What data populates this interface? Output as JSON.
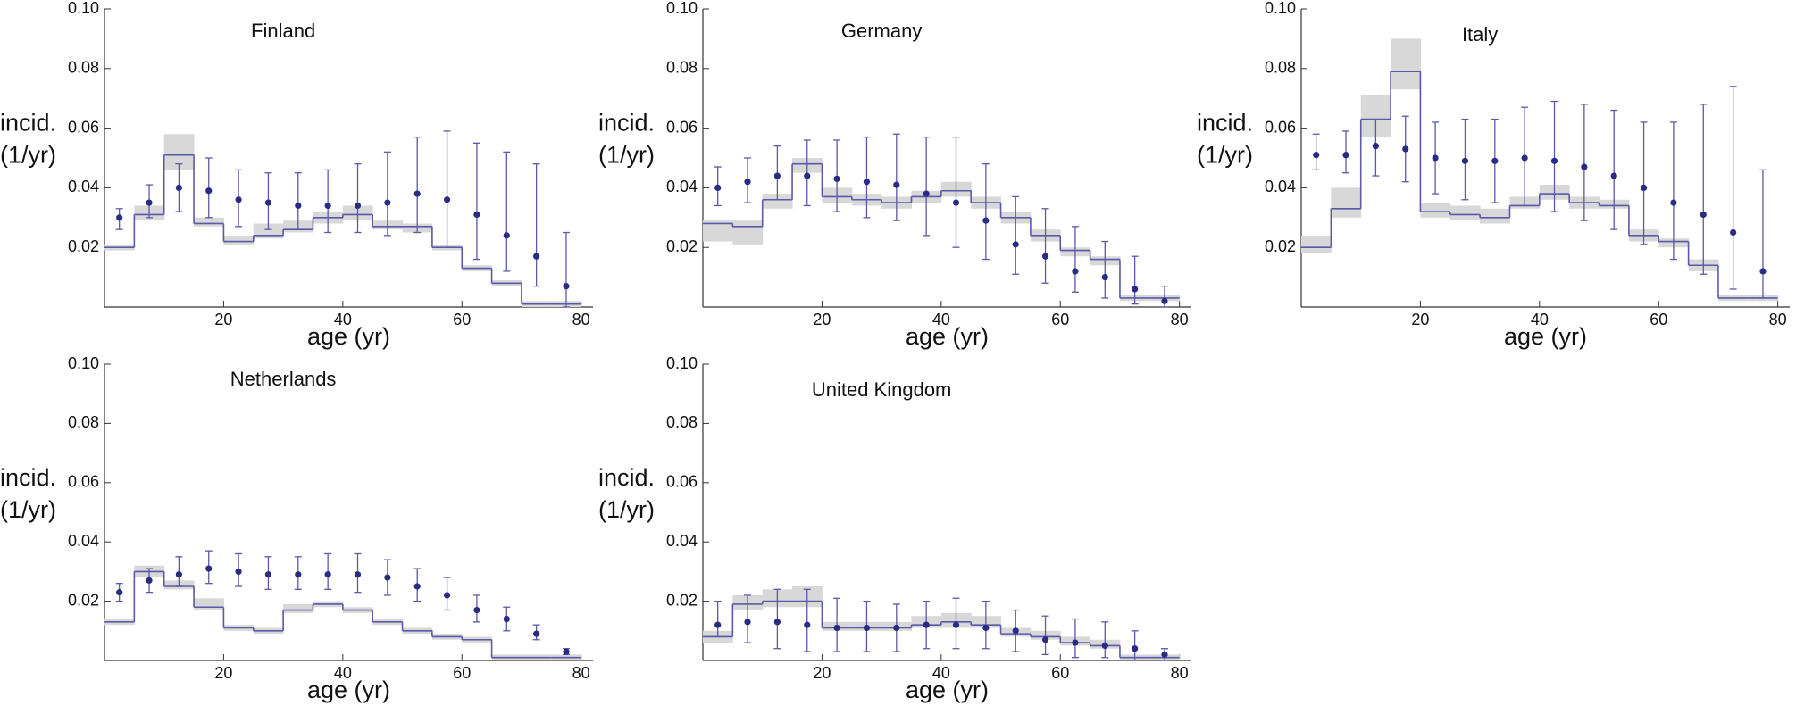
{
  "chart_data": [
    {
      "type": "errorbar",
      "title": "Finland",
      "xlabel": "age (yr)",
      "ylabel": [
        "incid.",
        "(1/yr)"
      ],
      "x": [
        2.5,
        7.5,
        12.5,
        17.5,
        22.5,
        27.5,
        32.5,
        37.5,
        42.5,
        47.5,
        52.5,
        57.5,
        62.5,
        67.5,
        72.5,
        77.5
      ],
      "values": [
        0.03,
        0.035,
        0.04,
        0.039,
        0.036,
        0.035,
        0.034,
        0.034,
        0.034,
        0.035,
        0.038,
        0.036,
        0.031,
        0.024,
        0.017,
        0.007
      ],
      "error_low": [
        0.026,
        0.03,
        0.032,
        0.03,
        0.027,
        0.026,
        0.026,
        0.025,
        0.025,
        0.024,
        0.025,
        0.02,
        0.016,
        0.012,
        0.007,
        0.0
      ],
      "error_high": [
        0.033,
        0.041,
        0.048,
        0.05,
        0.046,
        0.045,
        0.045,
        0.046,
        0.048,
        0.052,
        0.057,
        0.059,
        0.055,
        0.052,
        0.048,
        0.025
      ],
      "bins": [
        0,
        5,
        10,
        15,
        20,
        25,
        30,
        35,
        40,
        45,
        50,
        55,
        60,
        65,
        70,
        75,
        80
      ],
      "model": [
        0.02,
        0.031,
        0.051,
        0.028,
        0.022,
        0.024,
        0.026,
        0.03,
        0.031,
        0.027,
        0.027,
        0.02,
        0.013,
        0.008,
        0.001,
        0.001
      ],
      "model_low": [
        0.019,
        0.029,
        0.046,
        0.027,
        0.021,
        0.023,
        0.025,
        0.028,
        0.029,
        0.026,
        0.025,
        0.019,
        0.012,
        0.007,
        0.0,
        0.0
      ],
      "model_high": [
        0.021,
        0.034,
        0.058,
        0.03,
        0.024,
        0.028,
        0.029,
        0.032,
        0.034,
        0.029,
        0.028,
        0.021,
        0.014,
        0.009,
        0.002,
        0.002
      ],
      "xlim": [
        0,
        82
      ],
      "xticks": [
        20,
        40,
        60,
        80
      ],
      "ylim": [
        0,
        0.1
      ],
      "yticks": [
        0.02,
        0.04,
        0.06,
        0.08,
        {
          "value": 0.1,
          "label": "0.10"
        }
      ],
      "color": "#2b2b85",
      "line_color": "#5a5aa8",
      "band_color": "#d8d8d8"
    },
    {
      "type": "errorbar",
      "title": "Germany",
      "xlabel": "age (yr)",
      "ylabel": [
        "incid.",
        "(1/yr)"
      ],
      "x": [
        2.5,
        7.5,
        12.5,
        17.5,
        22.5,
        27.5,
        32.5,
        37.5,
        42.5,
        47.5,
        52.5,
        57.5,
        62.5,
        67.5,
        72.5,
        77.5
      ],
      "values": [
        0.04,
        0.042,
        0.044,
        0.044,
        0.043,
        0.042,
        0.041,
        0.038,
        0.035,
        0.029,
        0.021,
        0.017,
        0.012,
        0.01,
        0.006,
        0.002
      ],
      "error_low": [
        0.034,
        0.035,
        0.036,
        0.034,
        0.032,
        0.03,
        0.029,
        0.024,
        0.02,
        0.016,
        0.011,
        0.008,
        0.005,
        0.003,
        0.001,
        0.0
      ],
      "error_high": [
        0.047,
        0.05,
        0.054,
        0.056,
        0.056,
        0.057,
        0.058,
        0.057,
        0.057,
        0.048,
        0.037,
        0.033,
        0.027,
        0.022,
        0.017,
        0.007
      ],
      "bins": [
        0,
        5,
        10,
        15,
        20,
        25,
        30,
        35,
        40,
        45,
        50,
        55,
        60,
        65,
        70,
        75,
        80
      ],
      "model": [
        0.028,
        0.027,
        0.036,
        0.048,
        0.037,
        0.036,
        0.035,
        0.037,
        0.039,
        0.035,
        0.03,
        0.024,
        0.019,
        0.016,
        0.003,
        0.003
      ],
      "model_low": [
        0.022,
        0.021,
        0.033,
        0.045,
        0.035,
        0.034,
        0.033,
        0.035,
        0.037,
        0.033,
        0.028,
        0.022,
        0.017,
        0.014,
        0.002,
        0.002
      ],
      "model_high": [
        0.029,
        0.029,
        0.038,
        0.05,
        0.04,
        0.038,
        0.037,
        0.039,
        0.042,
        0.037,
        0.032,
        0.026,
        0.02,
        0.017,
        0.004,
        0.004
      ],
      "xlim": [
        0,
        82
      ],
      "xticks": [
        20,
        40,
        60,
        80
      ],
      "ylim": [
        0,
        0.1
      ],
      "yticks": [
        0.02,
        0.04,
        0.06,
        0.08,
        {
          "value": 0.1,
          "label": "0.10"
        }
      ],
      "color": "#2b2b85",
      "line_color": "#5a5aa8",
      "band_color": "#d8d8d8"
    },
    {
      "type": "errorbar",
      "title": "Italy",
      "xlabel": "age (yr)",
      "ylabel": [
        "incid.",
        "(1/yr)"
      ],
      "x": [
        2.5,
        7.5,
        12.5,
        17.5,
        22.5,
        27.5,
        32.5,
        37.5,
        42.5,
        47.5,
        52.5,
        57.5,
        62.5,
        67.5,
        72.5,
        77.5
      ],
      "values": [
        0.051,
        0.051,
        0.054,
        0.053,
        0.05,
        0.049,
        0.049,
        0.05,
        0.049,
        0.047,
        0.044,
        0.04,
        0.035,
        0.031,
        0.025,
        0.012
      ],
      "error_low": [
        0.046,
        0.045,
        0.044,
        0.042,
        0.038,
        0.036,
        0.035,
        0.034,
        0.032,
        0.029,
        0.026,
        0.021,
        0.016,
        0.011,
        0.006,
        0.003
      ],
      "error_high": [
        0.058,
        0.059,
        0.063,
        0.064,
        0.062,
        0.063,
        0.063,
        0.067,
        0.069,
        0.068,
        0.066,
        0.062,
        0.062,
        0.068,
        0.074,
        0.046
      ],
      "bins": [
        0,
        5,
        10,
        15,
        20,
        25,
        30,
        35,
        40,
        45,
        50,
        55,
        60,
        65,
        70,
        75,
        80
      ],
      "model": [
        0.02,
        0.033,
        0.063,
        0.079,
        0.032,
        0.031,
        0.03,
        0.034,
        0.038,
        0.035,
        0.034,
        0.024,
        0.022,
        0.014,
        0.003,
        0.003
      ],
      "model_low": [
        0.018,
        0.03,
        0.057,
        0.073,
        0.03,
        0.029,
        0.028,
        0.033,
        0.036,
        0.033,
        0.033,
        0.022,
        0.02,
        0.012,
        0.002,
        0.002
      ],
      "model_high": [
        0.024,
        0.04,
        0.071,
        0.09,
        0.035,
        0.034,
        0.033,
        0.037,
        0.041,
        0.037,
        0.036,
        0.026,
        0.023,
        0.016,
        0.004,
        0.004
      ],
      "xlim": [
        0,
        82
      ],
      "xticks": [
        20,
        40,
        60,
        80
      ],
      "ylim": [
        0,
        0.1
      ],
      "yticks": [
        0.02,
        0.04,
        0.06,
        0.08,
        {
          "value": 0.1,
          "label": "0.10"
        }
      ],
      "color": "#2b2b85",
      "line_color": "#5a5aa8",
      "band_color": "#d8d8d8"
    },
    {
      "type": "errorbar",
      "title": "Netherlands",
      "xlabel": "age (yr)",
      "ylabel": [
        "incid.",
        "(1/yr)"
      ],
      "x": [
        2.5,
        7.5,
        12.5,
        17.5,
        22.5,
        27.5,
        32.5,
        37.5,
        42.5,
        47.5,
        52.5,
        57.5,
        62.5,
        67.5,
        72.5,
        77.5
      ],
      "values": [
        0.023,
        0.027,
        0.029,
        0.031,
        0.03,
        0.029,
        0.029,
        0.029,
        0.029,
        0.028,
        0.025,
        0.022,
        0.017,
        0.014,
        0.009,
        0.003
      ],
      "error_low": [
        0.02,
        0.023,
        0.025,
        0.026,
        0.025,
        0.024,
        0.024,
        0.024,
        0.023,
        0.022,
        0.02,
        0.017,
        0.013,
        0.01,
        0.007,
        0.002
      ],
      "error_high": [
        0.026,
        0.031,
        0.035,
        0.037,
        0.036,
        0.035,
        0.035,
        0.036,
        0.036,
        0.034,
        0.031,
        0.028,
        0.022,
        0.018,
        0.012,
        0.004
      ],
      "bins": [
        0,
        5,
        10,
        15,
        20,
        25,
        30,
        35,
        40,
        45,
        50,
        55,
        60,
        65,
        70,
        75,
        80
      ],
      "model": [
        0.013,
        0.03,
        0.025,
        0.018,
        0.011,
        0.01,
        0.017,
        0.019,
        0.017,
        0.013,
        0.01,
        0.008,
        0.007,
        0.001,
        0.001,
        0.001
      ],
      "model_low": [
        0.012,
        0.028,
        0.024,
        0.017,
        0.01,
        0.009,
        0.016,
        0.018,
        0.016,
        0.012,
        0.009,
        0.007,
        0.006,
        0.0,
        0.0,
        0.0
      ],
      "model_high": [
        0.014,
        0.032,
        0.027,
        0.021,
        0.012,
        0.011,
        0.019,
        0.02,
        0.018,
        0.014,
        0.011,
        0.009,
        0.008,
        0.002,
        0.002,
        0.002
      ],
      "xlim": [
        0,
        82
      ],
      "xticks": [
        20,
        40,
        60,
        80
      ],
      "ylim": [
        0,
        0.1
      ],
      "yticks": [
        0.02,
        0.04,
        0.06,
        0.08,
        {
          "value": 0.1,
          "label": "0.10"
        }
      ],
      "color": "#2b2b85",
      "line_color": "#5a5aa8",
      "band_color": "#d8d8d8"
    },
    {
      "type": "errorbar",
      "title": "United Kingdom",
      "xlabel": "age (yr)",
      "ylabel": [
        "incid.",
        "(1/yr)"
      ],
      "x": [
        2.5,
        7.5,
        12.5,
        17.5,
        22.5,
        27.5,
        32.5,
        37.5,
        42.5,
        47.5,
        52.5,
        57.5,
        62.5,
        67.5,
        72.5,
        77.5
      ],
      "values": [
        0.012,
        0.013,
        0.013,
        0.012,
        0.011,
        0.011,
        0.011,
        0.012,
        0.012,
        0.011,
        0.01,
        0.007,
        0.006,
        0.005,
        0.004,
        0.002
      ],
      "error_low": [
        0.008,
        0.006,
        0.004,
        0.003,
        0.003,
        0.003,
        0.003,
        0.004,
        0.004,
        0.004,
        0.003,
        0.002,
        0.001,
        0.001,
        0.0,
        0.0
      ],
      "error_high": [
        0.02,
        0.022,
        0.024,
        0.024,
        0.021,
        0.02,
        0.019,
        0.02,
        0.021,
        0.02,
        0.017,
        0.015,
        0.014,
        0.013,
        0.01,
        0.004
      ],
      "bins": [
        0,
        5,
        10,
        15,
        20,
        25,
        30,
        35,
        40,
        45,
        50,
        55,
        60,
        65,
        70,
        75,
        80
      ],
      "model": [
        0.008,
        0.019,
        0.02,
        0.02,
        0.011,
        0.011,
        0.011,
        0.012,
        0.013,
        0.012,
        0.009,
        0.008,
        0.006,
        0.005,
        0.001,
        0.001
      ],
      "model_low": [
        0.006,
        0.017,
        0.018,
        0.018,
        0.01,
        0.01,
        0.01,
        0.011,
        0.011,
        0.011,
        0.008,
        0.007,
        0.005,
        0.004,
        0.0,
        0.0
      ],
      "model_high": [
        0.01,
        0.022,
        0.024,
        0.025,
        0.013,
        0.013,
        0.013,
        0.015,
        0.016,
        0.015,
        0.011,
        0.01,
        0.008,
        0.007,
        0.002,
        0.002
      ],
      "xlim": [
        0,
        82
      ],
      "xticks": [
        20,
        40,
        60,
        80
      ],
      "ylim": [
        0,
        0.1
      ],
      "yticks": [
        0.02,
        0.04,
        0.06,
        0.08,
        {
          "value": 0.1,
          "label": "0.10"
        }
      ],
      "color": "#2b2b85",
      "line_color": "#5a5aa8",
      "band_color": "#d8d8d8"
    }
  ]
}
